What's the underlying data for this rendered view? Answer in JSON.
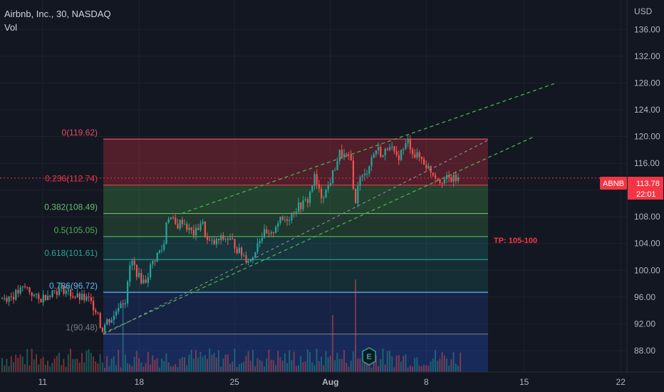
{
  "header": {
    "title": "Airbnb, Inc., 30, NASDAQ",
    "volume_label": "Vol"
  },
  "axis": {
    "currency": "USD"
  },
  "price_badge": {
    "symbol": "ABNB",
    "price": "113.78",
    "countdown": "22:01",
    "color": "#f23645"
  },
  "annotation": {
    "tp": "TP: 105-100",
    "event_icon": "E"
  },
  "chart_data": {
    "type": "candlestick",
    "title": "Airbnb, Inc., 30, NASDAQ",
    "ylabel": "USD",
    "ylim": [
      84.8,
      140.4
    ],
    "y_ticks": [
      "136.00",
      "132.00",
      "128.00",
      "124.00",
      "120.00",
      "116.00",
      "112.00",
      "108.00",
      "104.00",
      "100.00",
      "96.00",
      "92.00",
      "88.00"
    ],
    "x_ticks": [
      "11",
      "18",
      "25",
      "Aug",
      "8",
      "15",
      "22"
    ],
    "last_price": 113.78,
    "fibonacci": [
      {
        "ratio": "0",
        "price": 119.62,
        "label": "0(119.62)",
        "color": "#e84a5f"
      },
      {
        "ratio": "0.236",
        "price": 112.74,
        "label": "0.236(112.74)",
        "color": "#f23645"
      },
      {
        "ratio": "0.382",
        "price": 108.49,
        "label": "0.382(108.49)",
        "color": "#66bb6a"
      },
      {
        "ratio": "0.5",
        "price": 105.05,
        "label": "0.5(105.05)",
        "color": "#4caf50"
      },
      {
        "ratio": "0.618",
        "price": 101.61,
        "label": "0.618(101.61)",
        "color": "#26a69a"
      },
      {
        "ratio": "0.786",
        "price": 96.72,
        "label": "0.786(96.72)",
        "color": "#64b5f6"
      },
      {
        "ratio": "1",
        "price": 90.48,
        "label": "1(90.48)",
        "color": "#787b86"
      }
    ],
    "channel_lines": [
      {
        "from": [
          0.32,
          90.48
        ],
        "to": [
          0.84,
          128.0
        ],
        "style": "upper"
      },
      {
        "from": [
          0.32,
          90.48
        ],
        "to": [
          0.8,
          120.0
        ],
        "style": "lower"
      }
    ],
    "price_path": [
      [
        0.0,
        95.8
      ],
      [
        0.02,
        96.2
      ],
      [
        0.04,
        97.5
      ],
      [
        0.06,
        95.5
      ],
      [
        0.08,
        96.8
      ],
      [
        0.1,
        97.2
      ],
      [
        0.12,
        96.0
      ],
      [
        0.14,
        95.6
      ],
      [
        0.155,
        93.8
      ],
      [
        0.16,
        91.0
      ],
      [
        0.17,
        92.5
      ],
      [
        0.18,
        93.0
      ],
      [
        0.19,
        95.4
      ],
      [
        0.2,
        95.5
      ],
      [
        0.205,
        100.5
      ],
      [
        0.21,
        101.2
      ],
      [
        0.22,
        99.0
      ],
      [
        0.23,
        98.2
      ],
      [
        0.24,
        100.8
      ],
      [
        0.25,
        102.5
      ],
      [
        0.26,
        103.5
      ],
      [
        0.265,
        108.3
      ],
      [
        0.27,
        108.0
      ],
      [
        0.28,
        106.5
      ],
      [
        0.29,
        107.5
      ],
      [
        0.3,
        106.0
      ],
      [
        0.31,
        105.4
      ],
      [
        0.32,
        107.5
      ],
      [
        0.33,
        104.2
      ],
      [
        0.34,
        104.0
      ],
      [
        0.35,
        104.6
      ],
      [
        0.36,
        104.8
      ],
      [
        0.37,
        104.2
      ],
      [
        0.38,
        102.8
      ],
      [
        0.39,
        102.0
      ],
      [
        0.4,
        101.4
      ],
      [
        0.41,
        104.5
      ],
      [
        0.42,
        105.5
      ],
      [
        0.43,
        104.8
      ],
      [
        0.44,
        107.2
      ],
      [
        0.45,
        107.5
      ],
      [
        0.46,
        108.0
      ],
      [
        0.47,
        109.2
      ],
      [
        0.48,
        109.8
      ],
      [
        0.49,
        110.5
      ],
      [
        0.5,
        114.0
      ],
      [
        0.51,
        111.0
      ],
      [
        0.52,
        112.0
      ],
      [
        0.53,
        114.5
      ],
      [
        0.54,
        117.5
      ],
      [
        0.55,
        117.0
      ],
      [
        0.56,
        116.2
      ],
      [
        0.565,
        108.8
      ],
      [
        0.57,
        113.5
      ],
      [
        0.58,
        114.0
      ],
      [
        0.59,
        116.5
      ],
      [
        0.6,
        118.3
      ],
      [
        0.61,
        117.0
      ],
      [
        0.62,
        119.2
      ],
      [
        0.63,
        116.5
      ],
      [
        0.64,
        117.8
      ],
      [
        0.65,
        119.3
      ],
      [
        0.66,
        117.2
      ],
      [
        0.67,
        116.8
      ],
      [
        0.68,
        115.5
      ],
      [
        0.69,
        114.5
      ],
      [
        0.7,
        113.6
      ]
    ],
    "volume_spikes": [
      {
        "x": 0.195,
        "h": 0.55
      },
      {
        "x": 0.565,
        "h": 0.9
      },
      {
        "x": 0.53,
        "h": 0.4
      }
    ]
  }
}
